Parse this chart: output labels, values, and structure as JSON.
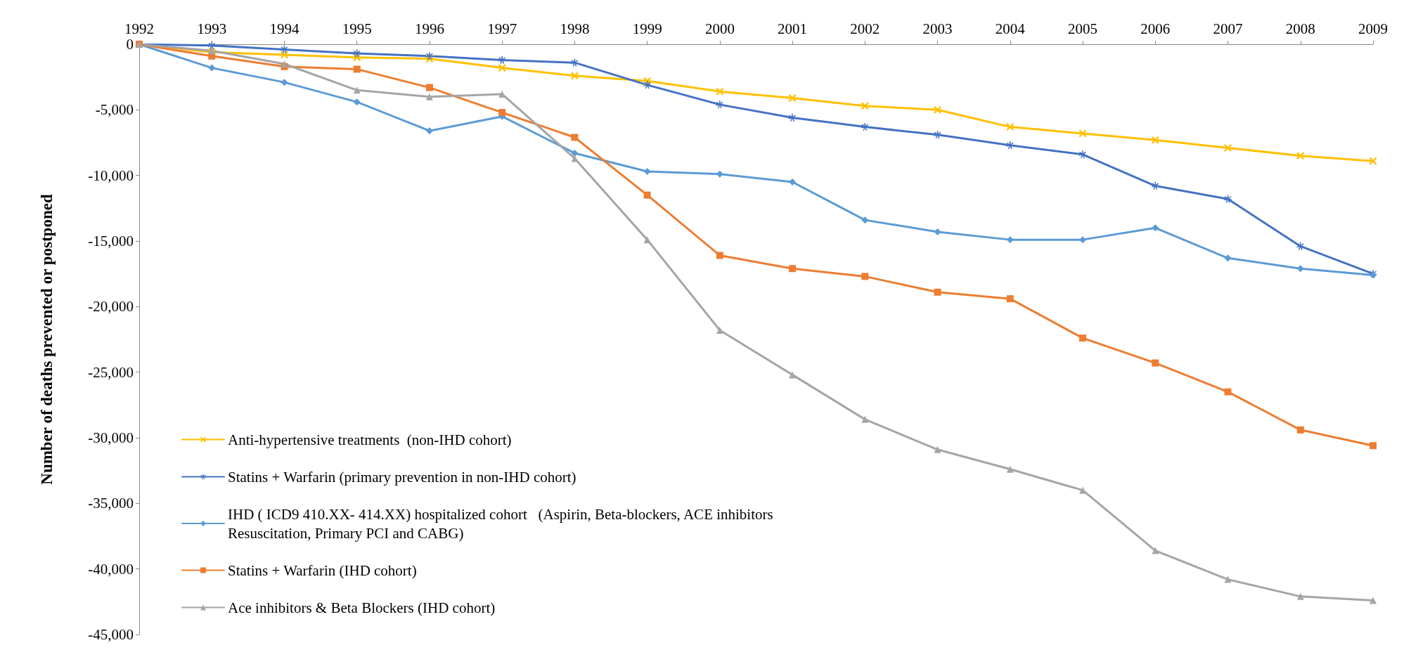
{
  "chart_data": {
    "type": "line",
    "ylabel": "Number of deaths prevented or postponed",
    "categories": [
      "1992",
      "1993",
      "1994",
      "1995",
      "1996",
      "1997",
      "1998",
      "1999",
      "2000",
      "2001",
      "2002",
      "2003",
      "2004",
      "2005",
      "2006",
      "2007",
      "2008",
      "2009"
    ],
    "ylim": [
      -45000,
      0
    ],
    "yticks": [
      {
        "value": -45000,
        "label": "-45,000"
      },
      {
        "value": -40000,
        "label": "-40,000"
      },
      {
        "value": -35000,
        "label": "-35,000"
      },
      {
        "value": -30000,
        "label": "-30,000"
      },
      {
        "value": -25000,
        "label": "-25,000"
      },
      {
        "value": -20000,
        "label": "-20,000"
      },
      {
        "value": -15000,
        "label": "-15,000"
      },
      {
        "value": -10000,
        "label": "-10,000"
      },
      {
        "value": -5000,
        "label": "-5,000"
      },
      0
    ],
    "grid": false,
    "legend": "bottom left",
    "line_style": "solid",
    "series": [
      {
        "name": "Anti-hypertensive treatments  (non-IHD cohort)",
        "color": "#ffc000",
        "marker": "cross",
        "values": [
          0,
          -600,
          -800,
          -1000,
          -1100,
          -1800,
          -2400,
          -2800,
          -3600,
          -4100,
          -4700,
          -5000,
          -6300,
          -6800,
          -7300,
          -7900,
          -8500,
          -8900
        ]
      },
      {
        "name": "Statins + Warfarin (primary prevention in non-IHD cohort)",
        "color": "#4472c4",
        "marker": "star",
        "values": [
          0,
          -100,
          -400,
          -700,
          -900,
          -1200,
          -1400,
          -3100,
          -4600,
          -5600,
          -6300,
          -6900,
          -7700,
          -8400,
          -10800,
          -11800,
          -15400,
          -17500
        ]
      },
      {
        "name": "IHD ( ICD9 410.XX- 414.XX) hospitalized cohort   (Aspirin, Beta-blockers, ACE inhibitors\nResuscitation, Primary PCI and CABG)",
        "color": "#5b9bd5",
        "marker": "diamond",
        "values": [
          0,
          -1800,
          -2900,
          -4400,
          -6600,
          -5500,
          -8300,
          -9700,
          -9900,
          -10500,
          -13400,
          -14300,
          -14900,
          -14900,
          -14000,
          -16300,
          -17100,
          -17600
        ]
      },
      {
        "name": "Statins + Warfarin (IHD cohort)",
        "color": "#ed7d31",
        "marker": "square",
        "values": [
          0,
          -900,
          -1700,
          -1900,
          -3300,
          -5200,
          -7100,
          -11500,
          -16100,
          -17100,
          -17700,
          -18900,
          -19400,
          -22400,
          -24300,
          -26500,
          -29400,
          -30600
        ]
      },
      {
        "name": "Ace inhibitors & Beta Blockers (IHD cohort)",
        "color": "#a5a5a5",
        "marker": "triangle",
        "values": [
          0,
          -500,
          -1500,
          -3500,
          -4000,
          -3800,
          -8700,
          -14900,
          -21800,
          -25200,
          -28600,
          -30900,
          -32400,
          -34000,
          -38600,
          -40800,
          -42100,
          -42400
        ]
      }
    ]
  }
}
